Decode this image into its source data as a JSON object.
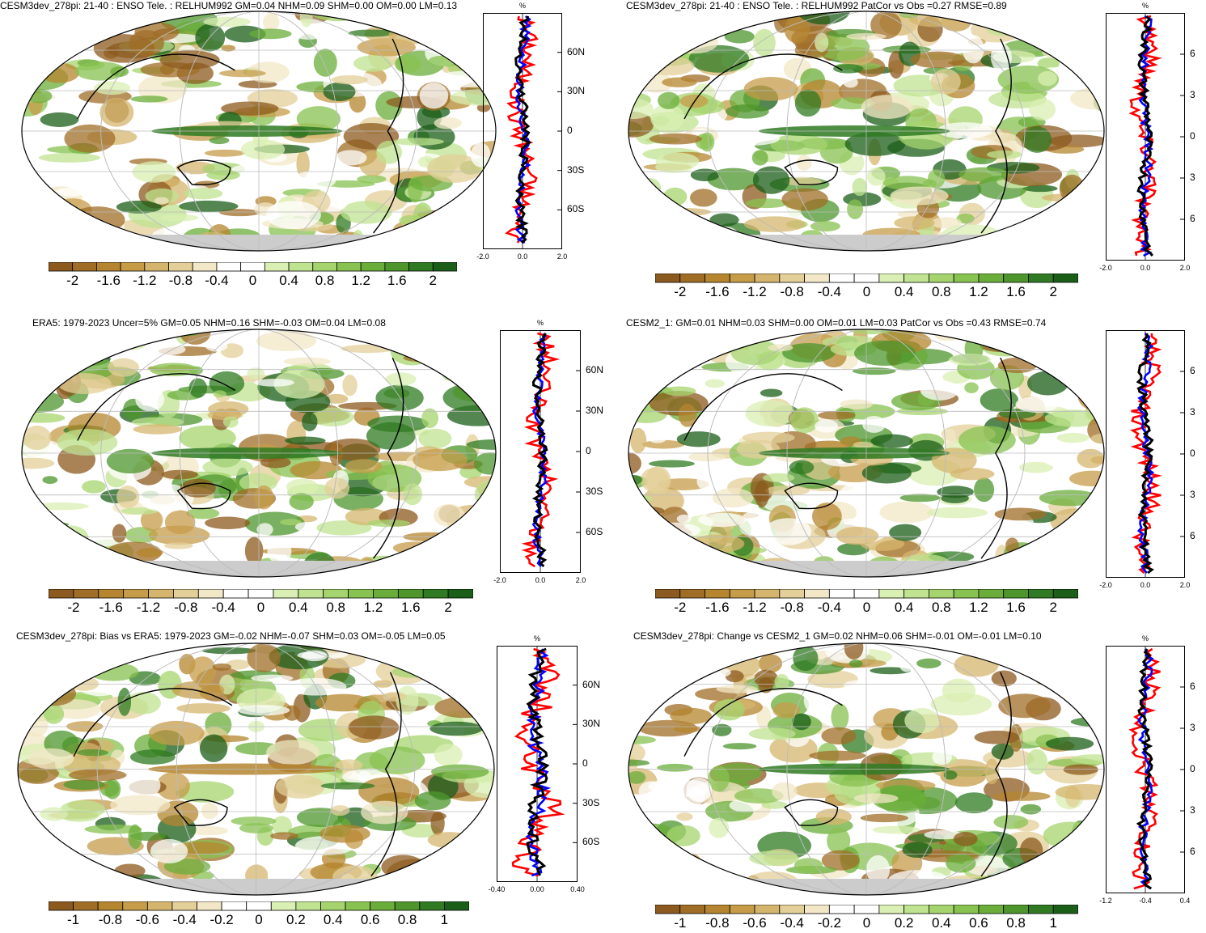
{
  "panels": [
    {
      "title": "CESM3dev_278pi: 21-40 : ENSO Tele. : RELHUM992 GM=0.04 NHM=0.09 SHM=0.00 OM=0.00 LM=0.13",
      "colorbar_labels": [
        "-2",
        "-1.6",
        "-1.2",
        "-0.8",
        "-0.4",
        "0",
        "0.4",
        "0.8",
        "1.2",
        "1.6",
        "2"
      ],
      "pct_label": "%",
      "lat_labels": [
        "60N",
        "30N",
        "0",
        "30S",
        "60S"
      ],
      "x_ticks": [
        "-2.0",
        "0.0",
        "2.0"
      ]
    },
    {
      "title": "CESM3dev_278pi: 21-40 : ENSO Tele. : RELHUM992 PatCor vs Obs =0.27 RMSE=0.89",
      "colorbar_labels": [
        "-2",
        "-1.6",
        "-1.2",
        "-0.8",
        "-0.4",
        "0",
        "0.4",
        "0.8",
        "1.2",
        "1.6",
        "2"
      ],
      "pct_label": "%",
      "lat_labels": [
        "6",
        "3",
        "0",
        "3",
        "6"
      ],
      "x_ticks": [
        "-2.0",
        "0.0",
        "2.0"
      ]
    },
    {
      "title": "ERA5: 1979-2023 Uncer=5% GM=0.05 NHM=0.16 SHM=-0.03 OM=0.04 LM=0.08",
      "colorbar_labels": [
        "-2",
        "-1.6",
        "-1.2",
        "-0.8",
        "-0.4",
        "0",
        "0.4",
        "0.8",
        "1.2",
        "1.6",
        "2"
      ],
      "pct_label": "%",
      "lat_labels": [
        "60N",
        "30N",
        "0",
        "30S",
        "60S"
      ],
      "x_ticks": [
        "-2.0",
        "0.0",
        "2.0"
      ]
    },
    {
      "title": "CESM2_1: GM=0.01 NHM=0.03 SHM=0.00 OM=0.01 LM=0.03 PatCor vs Obs =0.43 RMSE=0.74",
      "colorbar_labels": [
        "-2",
        "-1.6",
        "-1.2",
        "-0.8",
        "-0.4",
        "0",
        "0.4",
        "0.8",
        "1.2",
        "1.6",
        "2"
      ],
      "pct_label": "",
      "lat_labels": [
        "6",
        "3",
        "0",
        "3",
        "6"
      ],
      "x_ticks": [
        "-2.0",
        "0.0",
        "2.0"
      ]
    },
    {
      "title": "CESM3dev_278pi: Bias vs ERA5: 1979-2023 GM=-0.02 NHM=-0.07 SHM=0.03 OM=-0.05 LM=0.05",
      "colorbar_labels": [
        "-1",
        "-0.8",
        "-0.6",
        "-0.4",
        "-0.2",
        "0",
        "0.2",
        "0.4",
        "0.6",
        "0.8",
        "1"
      ],
      "pct_label": "%",
      "lat_labels": [
        "60N",
        "30N",
        "0",
        "30S",
        "60S"
      ],
      "x_ticks": [
        "-0.40",
        "0.00",
        "0.40"
      ]
    },
    {
      "title": "CESM3dev_278pi: Change vs CESM2_1 GM=0.02 NHM=0.06 SHM=-0.01 OM=-0.01 LM=0.10",
      "colorbar_labels": [
        "-1",
        "-0.8",
        "-0.6",
        "-0.4",
        "-0.2",
        "0",
        "0.2",
        "0.4",
        "0.6",
        "0.8",
        "1"
      ],
      "pct_label": "%",
      "lat_labels": [
        "6",
        "3",
        "0",
        "3",
        "6"
      ],
      "x_ticks": [
        "-1.2",
        "-0.4",
        "0.4"
      ]
    }
  ],
  "colors": {
    "brown_to_green": [
      "#8c5a1e",
      "#a06d27",
      "#b5852f",
      "#c69c49",
      "#d5b56e",
      "#e3cf98",
      "#f2e7c6",
      "#ffffff",
      "#ffffff",
      "#d9efb3",
      "#bfe390",
      "#a5d46e",
      "#88c250",
      "#6aad3a",
      "#4e952c",
      "#2f7a22",
      "#1b5e18"
    ],
    "land_mask": "#cccccc",
    "profile_model": "#000000",
    "profile_obs": "#0000ff",
    "profile_change": "#ff0000"
  }
}
